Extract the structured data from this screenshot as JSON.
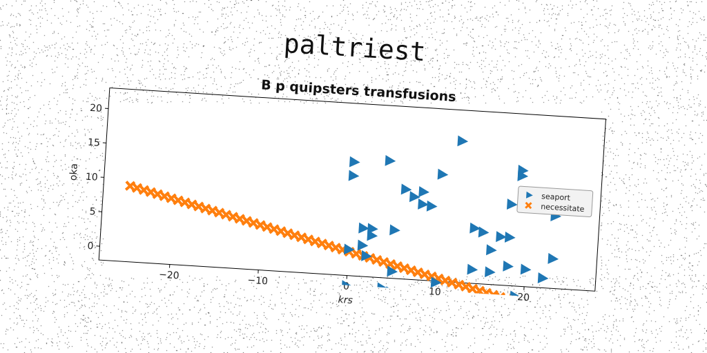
{
  "chart_data": {
    "type": "scatter",
    "suptitle": "paltriest",
    "title": "B p quipsters transfusions",
    "xlabel": "krs",
    "ylabel": "oka",
    "xlim": [
      -28,
      28
    ],
    "ylim": [
      -2,
      23
    ],
    "xticks": [
      -20,
      -10,
      0,
      10,
      20
    ],
    "yticks": [
      0,
      5,
      10,
      15,
      20
    ],
    "xtick_labels": [
      "−20",
      "−10",
      "0",
      "10",
      "20"
    ],
    "ytick_labels": [
      "0",
      "5",
      "10",
      "15",
      "20"
    ],
    "grid": false,
    "legend": "center-right",
    "series": [
      {
        "name": "seaport",
        "marker": "triangle-right",
        "color": "#1f77b4",
        "points": [
          [
            12,
            18.5
          ],
          [
            0,
            14.5
          ],
          [
            4,
            15
          ],
          [
            10,
            13.5
          ],
          [
            19,
            14.8
          ],
          [
            19,
            14
          ],
          [
            0,
            12.5
          ],
          [
            6,
            11
          ],
          [
            8,
            10.8
          ],
          [
            20,
            11.5
          ],
          [
            22,
            11.3
          ],
          [
            7,
            10
          ],
          [
            8,
            9
          ],
          [
            9,
            8.8
          ],
          [
            18,
            9.8
          ],
          [
            23,
            8.5
          ],
          [
            14,
            6
          ],
          [
            15,
            5.5
          ],
          [
            1.5,
            5
          ],
          [
            2.5,
            5
          ],
          [
            2.5,
            4
          ],
          [
            5,
            5
          ],
          [
            17,
            5
          ],
          [
            18,
            5
          ],
          [
            16,
            3
          ],
          [
            1.5,
            2.5
          ],
          [
            0,
            1.8
          ],
          [
            23,
            2.3
          ],
          [
            2,
            1
          ],
          [
            18,
            0.8
          ],
          [
            20,
            0.5
          ],
          [
            14,
            0
          ],
          [
            16,
            -0.2
          ],
          [
            22,
            -0.6
          ],
          [
            5,
            -1
          ],
          [
            10,
            -2.2
          ],
          [
            0,
            -3.5
          ],
          [
            4,
            -3.5
          ],
          [
            5,
            -4
          ],
          [
            19,
            -3.5
          ]
        ]
      },
      {
        "name": "necessitate",
        "marker": "x",
        "color": "#ff7f0e",
        "line": {
          "slope": -0.3,
          "intercept": 1.5,
          "x_from": -25,
          "x_to": 26,
          "count": 66
        }
      }
    ]
  }
}
